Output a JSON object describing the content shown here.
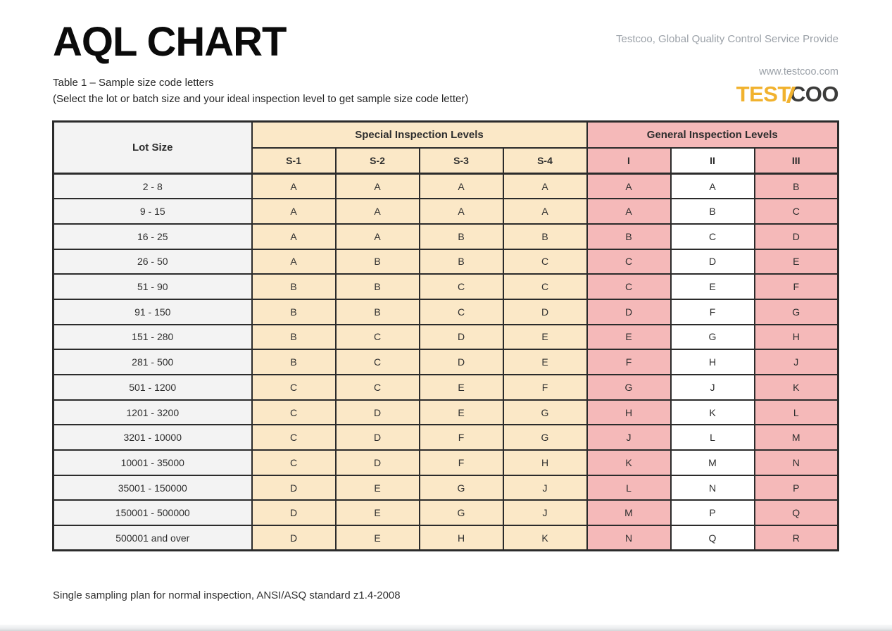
{
  "header": {
    "title": "AQL CHART",
    "subtitle_line1": "Table 1 – Sample size code letters",
    "subtitle_line2": "(Select the lot or batch size and your ideal inspection level to get sample size code letter)",
    "tagline": "Testcoo, Global Quality Control Service Provide",
    "website": "www.testcoo.com",
    "logo_part1": "TEST",
    "logo_part2": "COO"
  },
  "table": {
    "lot_size_header": "Lot Size",
    "group_headers": [
      "Special Inspection Levels",
      "General Inspection Levels"
    ],
    "sub_headers": [
      "S-1",
      "S-2",
      "S-3",
      "S-4",
      "I",
      "II",
      "III"
    ],
    "rows": [
      {
        "lot": "2 - 8",
        "cells": [
          "A",
          "A",
          "A",
          "A",
          "A",
          "A",
          "B"
        ]
      },
      {
        "lot": "9 - 15",
        "cells": [
          "A",
          "A",
          "A",
          "A",
          "A",
          "B",
          "C"
        ]
      },
      {
        "lot": "16 - 25",
        "cells": [
          "A",
          "A",
          "B",
          "B",
          "B",
          "C",
          "D"
        ]
      },
      {
        "lot": "26 - 50",
        "cells": [
          "A",
          "B",
          "B",
          "C",
          "C",
          "D",
          "E"
        ]
      },
      {
        "lot": "51 - 90",
        "cells": [
          "B",
          "B",
          "C",
          "C",
          "C",
          "E",
          "F"
        ]
      },
      {
        "lot": "91 - 150",
        "cells": [
          "B",
          "B",
          "C",
          "D",
          "D",
          "F",
          "G"
        ]
      },
      {
        "lot": "151 - 280",
        "cells": [
          "B",
          "C",
          "D",
          "E",
          "E",
          "G",
          "H"
        ]
      },
      {
        "lot": "281 - 500",
        "cells": [
          "B",
          "C",
          "D",
          "E",
          "F",
          "H",
          "J"
        ]
      },
      {
        "lot": "501 - 1200",
        "cells": [
          "C",
          "C",
          "E",
          "F",
          "G",
          "J",
          "K"
        ]
      },
      {
        "lot": "1201 - 3200",
        "cells": [
          "C",
          "D",
          "E",
          "G",
          "H",
          "K",
          "L"
        ]
      },
      {
        "lot": "3201 - 10000",
        "cells": [
          "C",
          "D",
          "F",
          "G",
          "J",
          "L",
          "M"
        ]
      },
      {
        "lot": "10001 - 35000",
        "cells": [
          "C",
          "D",
          "F",
          "H",
          "K",
          "M",
          "N"
        ]
      },
      {
        "lot": "35001 - 150000",
        "cells": [
          "D",
          "E",
          "G",
          "J",
          "L",
          "N",
          "P"
        ]
      },
      {
        "lot": "150001 - 500000",
        "cells": [
          "D",
          "E",
          "G",
          "J",
          "M",
          "P",
          "Q"
        ]
      },
      {
        "lot": "500001 and over",
        "cells": [
          "D",
          "E",
          "H",
          "K",
          "N",
          "Q",
          "R"
        ]
      }
    ]
  },
  "footnote": "Single sampling plan for normal inspection, ANSI/ASQ standard z1.4-2008",
  "colors": {
    "special_levels_bg": "#FBE8C7",
    "general_levels_bg": "#F5B9B9",
    "lot_size_bg": "#F3F3F3",
    "border": "#2B2B2B",
    "logo_yellow": "#F1B22E",
    "logo_dark": "#3B3B3A",
    "muted_text": "#9BA1A8"
  }
}
